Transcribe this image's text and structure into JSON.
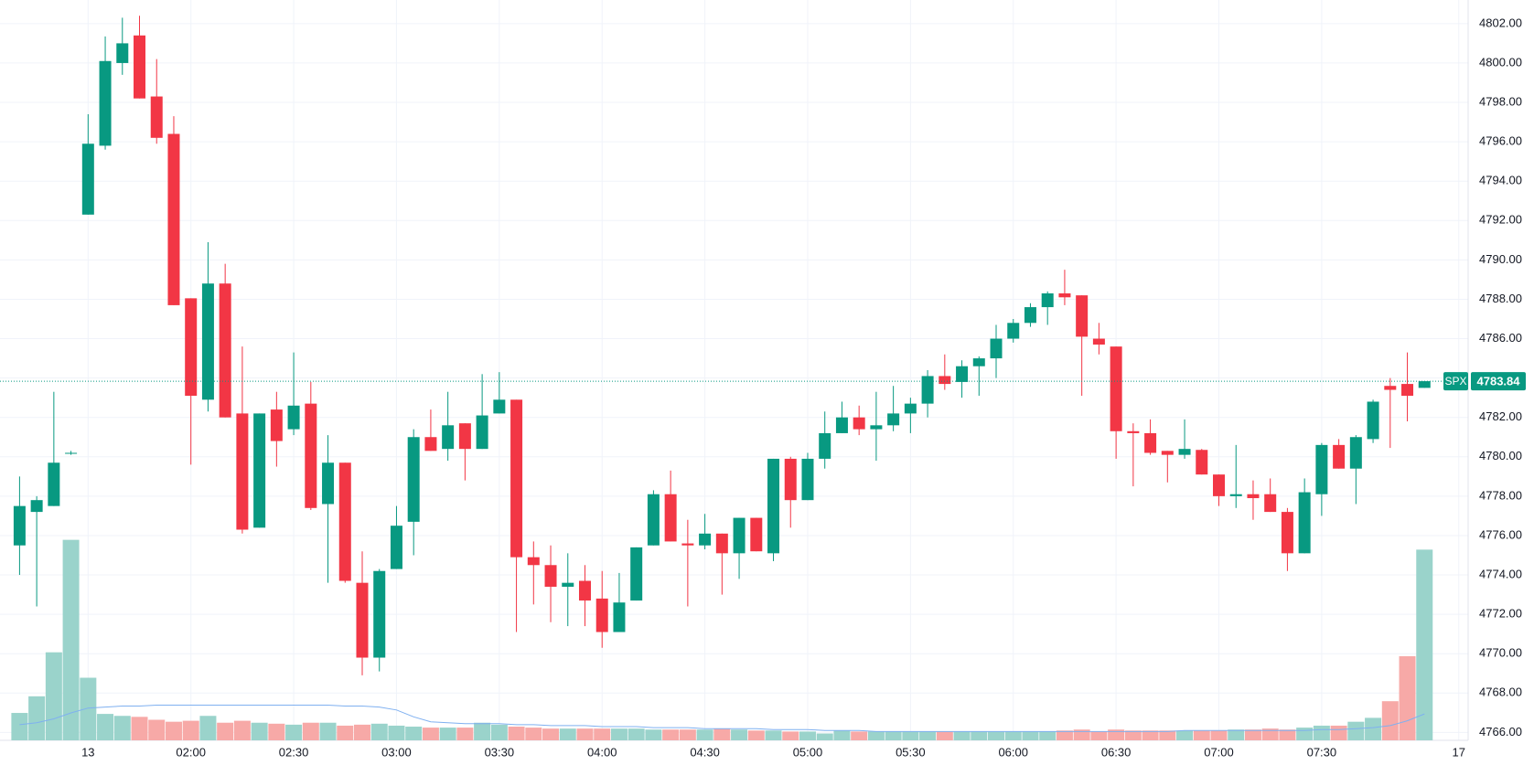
{
  "chart_data": {
    "type": "candlestick",
    "up_color": "#089981",
    "down_color": "#f23645",
    "volume_up_color": "#9ad3cb",
    "volume_down_color": "#f7a9a7",
    "volume_ma_color": "#7fb0f0",
    "grid": true,
    "x": [
      "01:10",
      "01:15",
      "01:20",
      "01:25",
      "01:30",
      "01:35",
      "01:40",
      "01:45",
      "01:50",
      "01:55",
      "02:00",
      "02:05",
      "02:10",
      "02:15",
      "02:20",
      "02:25",
      "02:30",
      "02:35",
      "02:40",
      "02:45",
      "02:50",
      "02:55",
      "03:00",
      "03:05",
      "03:10",
      "03:15",
      "03:20",
      "03:25",
      "03:30",
      "03:35",
      "03:40",
      "03:45",
      "03:50",
      "03:55",
      "04:00",
      "04:05",
      "04:10",
      "04:15",
      "04:20",
      "04:25",
      "04:30",
      "04:35",
      "04:40",
      "04:45",
      "04:50",
      "04:55",
      "05:00",
      "05:05",
      "05:10",
      "05:15",
      "05:20",
      "05:25",
      "05:30",
      "05:35",
      "05:40",
      "05:45",
      "05:50",
      "05:55",
      "06:00",
      "06:05",
      "06:10",
      "06:15",
      "06:20",
      "06:25",
      "06:30",
      "06:35",
      "06:40",
      "06:45",
      "06:50",
      "06:55",
      "07:00",
      "07:05",
      "07:10",
      "07:15",
      "07:20",
      "07:25",
      "07:30",
      "07:35",
      "07:40",
      "07:45",
      "07:50",
      "07:55",
      "08:00"
    ],
    "open": [
      4775.5,
      4777.2,
      4777.5,
      4780.2,
      4792.3,
      4795.8,
      4800.0,
      4801.4,
      4798.3,
      4796.4,
      4788.05,
      4782.9,
      4788.8,
      4782.2,
      4776.4,
      4782.4,
      4781.4,
      4782.7,
      4777.6,
      4779.7,
      4773.6,
      4769.8,
      4774.3,
      4776.7,
      4781.0,
      4780.4,
      4781.7,
      4780.4,
      4782.2,
      4782.9,
      4774.9,
      4774.5,
      4773.4,
      4773.7,
      4772.8,
      4771.1,
      4772.7,
      4775.5,
      4778.1,
      4775.6,
      4775.5,
      4776.1,
      4775.1,
      4776.9,
      4775.1,
      4779.9,
      4777.8,
      4779.9,
      4781.2,
      4782.0,
      4781.4,
      4781.6,
      4782.2,
      4782.7,
      4784.1,
      4783.8,
      4784.6,
      4785.0,
      4786.0,
      4786.8,
      4787.6,
      4788.3,
      4788.2,
      4786.0,
      4785.6,
      4781.3,
      4781.2,
      4780.3,
      4780.1,
      4780.35,
      4779.1,
      4778.0,
      4778.1,
      4778.1,
      4777.2,
      4775.1,
      4778.1,
      4780.6,
      4779.4,
      4780.9,
      4783.6,
      4783.7,
      4783.5
    ],
    "high": [
      4779.0,
      4778.0,
      4783.3,
      4780.3,
      4797.4,
      4801.35,
      4802.3,
      4802.4,
      4800.2,
      4797.3,
      4788.05,
      4790.9,
      4789.8,
      4785.6,
      4782.2,
      4783.3,
      4785.3,
      4783.8,
      4781.1,
      4779.7,
      4775.2,
      4774.3,
      4777.5,
      4781.4,
      4782.4,
      4783.3,
      4781.7,
      4784.2,
      4784.3,
      4782.9,
      4775.7,
      4775.5,
      4775.1,
      4774.5,
      4774.2,
      4774.1,
      4775.4,
      4778.3,
      4779.3,
      4776.8,
      4777.1,
      4776.1,
      4776.9,
      4776.9,
      4779.9,
      4780.0,
      4780.2,
      4782.3,
      4782.8,
      4782.6,
      4783.3,
      4783.6,
      4783.0,
      4784.4,
      4785.2,
      4784.9,
      4785.1,
      4786.7,
      4787.0,
      4787.8,
      4788.4,
      4789.5,
      4788.2,
      4786.8,
      4785.6,
      4781.7,
      4781.9,
      4780.3,
      4781.9,
      4780.4,
      4779.1,
      4780.6,
      4778.8,
      4778.9,
      4777.4,
      4778.9,
      4780.7,
      4780.9,
      4781.1,
      4782.9,
      4784.0,
      4785.3,
      4783.84
    ],
    "low": [
      4774.0,
      4772.4,
      4777.5,
      4780.1,
      4792.3,
      4795.6,
      4799.4,
      4798.2,
      4795.9,
      4787.7,
      4779.6,
      4782.3,
      4782.0,
      4776.1,
      4776.4,
      4779.5,
      4781.1,
      4777.3,
      4773.6,
      4773.6,
      4768.9,
      4769.1,
      4774.3,
      4775.0,
      4780.3,
      4779.8,
      4778.8,
      4780.4,
      4782.2,
      4771.1,
      4772.5,
      4771.6,
      4771.4,
      4771.4,
      4770.3,
      4771.1,
      4772.7,
      4775.5,
      4775.7,
      4772.4,
      4775.3,
      4773.0,
      4773.8,
      4775.2,
      4774.7,
      4776.4,
      4777.8,
      4779.4,
      4781.2,
      4781.1,
      4779.8,
      4781.3,
      4781.2,
      4782.0,
      4783.4,
      4783.0,
      4783.1,
      4784.0,
      4785.8,
      4786.6,
      4786.7,
      4787.7,
      4783.1,
      4785.2,
      4779.9,
      4778.5,
      4780.1,
      4778.7,
      4779.9,
      4779.1,
      4777.5,
      4777.4,
      4776.8,
      4777.2,
      4774.2,
      4775.1,
      4777.0,
      4779.4,
      4777.6,
      4780.7,
      4780.45,
      4781.8,
      4783.5
    ],
    "close": [
      4777.5,
      4777.8,
      4779.7,
      4780.2,
      4795.9,
      4800.1,
      4801.0,
      4798.2,
      4796.2,
      4787.7,
      4783.1,
      4788.8,
      4782.0,
      4776.3,
      4782.2,
      4780.8,
      4782.6,
      4777.4,
      4779.7,
      4773.7,
      4769.8,
      4774.2,
      4776.5,
      4781.0,
      4780.3,
      4781.6,
      4780.4,
      4782.1,
      4782.9,
      4774.9,
      4774.5,
      4773.4,
      4773.6,
      4772.7,
      4771.1,
      4772.6,
      4775.4,
      4778.1,
      4775.7,
      4775.5,
      4776.1,
      4775.1,
      4776.9,
      4775.2,
      4779.9,
      4777.8,
      4779.9,
      4781.2,
      4782.0,
      4781.4,
      4781.6,
      4782.2,
      4782.7,
      4784.1,
      4783.7,
      4784.6,
      4785.0,
      4786.0,
      4786.8,
      4787.6,
      4788.3,
      4788.1,
      4786.1,
      4785.7,
      4781.3,
      4781.2,
      4780.2,
      4780.1,
      4780.4,
      4779.1,
      4778.0,
      4778.1,
      4777.9,
      4777.2,
      4775.1,
      4778.2,
      4780.6,
      4779.4,
      4781.0,
      4782.8,
      4783.4,
      4783.1,
      4783.84
    ],
    "volume": [
      28,
      45,
      90,
      205,
      64,
      27,
      25,
      24,
      21,
      19,
      20,
      25,
      18,
      20,
      18,
      17,
      16,
      18,
      18,
      15,
      16,
      17,
      15,
      14,
      13,
      13,
      13,
      18,
      16,
      14,
      13,
      12,
      12,
      12,
      12,
      12,
      12,
      11,
      11,
      11,
      11,
      12,
      11,
      10,
      10,
      9,
      9,
      7,
      10,
      9,
      9,
      9,
      9,
      9,
      9,
      9,
      9,
      9,
      9,
      9,
      9,
      10,
      11,
      9,
      11,
      10,
      10,
      10,
      10,
      10,
      10,
      11,
      11,
      12,
      11,
      13,
      15,
      15,
      19,
      23,
      40,
      86,
      195
    ],
    "volume_ma": [
      16,
      18,
      22,
      28,
      33,
      34,
      35,
      35,
      36,
      36,
      36,
      36,
      36,
      36,
      36,
      36,
      36,
      36,
      36,
      35,
      35,
      34,
      31,
      24,
      19,
      18,
      17,
      17,
      17,
      16,
      16,
      15,
      15,
      15,
      14,
      14,
      14,
      13,
      13,
      13,
      12,
      12,
      12,
      12,
      11,
      11,
      11,
      10,
      10,
      10,
      9,
      9,
      9,
      9,
      9,
      9,
      9,
      9,
      9,
      9,
      9,
      9,
      9,
      9,
      9,
      9,
      9,
      9,
      10,
      10,
      10,
      10,
      10,
      10,
      10,
      10,
      11,
      11,
      12,
      13,
      15,
      20,
      27
    ],
    "volume_ylim": [
      0,
      757
    ],
    "ylim": [
      4765.6,
      4803.2
    ],
    "yticks": [
      {
        "value": 4766,
        "label": "4766.00"
      },
      {
        "value": 4768,
        "label": "4768.00"
      },
      {
        "value": 4770,
        "label": "4770.00"
      },
      {
        "value": 4772,
        "label": "4772.00"
      },
      {
        "value": 4774,
        "label": "4774.00"
      },
      {
        "value": 4776,
        "label": "4776.00"
      },
      {
        "value": 4778,
        "label": "4778.00"
      },
      {
        "value": 4780,
        "label": "4780.00"
      },
      {
        "value": 4782,
        "label": "4782.00"
      },
      {
        "value": 4784,
        "label": "4784.00"
      },
      {
        "value": 4786,
        "label": "4786.00"
      },
      {
        "value": 4788,
        "label": "4788.00"
      },
      {
        "value": 4790,
        "label": "4790.00"
      },
      {
        "value": 4792,
        "label": "4792.00"
      },
      {
        "value": 4794,
        "label": "4794.00"
      },
      {
        "value": 4796,
        "label": "4796.00"
      },
      {
        "value": 4798,
        "label": "4798.00"
      },
      {
        "value": 4800,
        "label": "4800.00"
      },
      {
        "value": 4802,
        "label": "4802.00"
      }
    ],
    "xticks": [
      {
        "value": "01:30",
        "label": "13"
      },
      "02:00",
      "02:30",
      "03:00",
      "03:30",
      "04:00",
      "04:30",
      "05:00",
      "05:30",
      "06:00",
      "06:30",
      "07:00",
      "07:30",
      {
        "value": "08:10",
        "label": "17"
      }
    ],
    "last_price": {
      "symbol": "SPX",
      "value": 4783.84
    }
  }
}
